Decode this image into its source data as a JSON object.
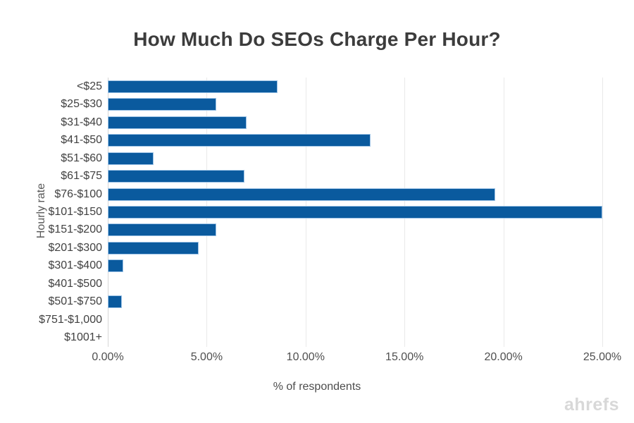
{
  "chart_data": {
    "type": "bar",
    "orientation": "horizontal",
    "title": "How Much Do SEOs Charge Per Hour?",
    "xlabel": "% of respondents",
    "ylabel": "Hourly rate",
    "categories": [
      "<$25",
      "$25-$30",
      "$31-$40",
      "$41-$50",
      "$51-$60",
      "$61-$75",
      "$76-$100",
      "$101-$150",
      "$151-$200",
      "$201-$300",
      "$301-$400",
      "$401-$500",
      "$501-$750",
      "$751-$1,000",
      "$1001+"
    ],
    "values": [
      8.6,
      5.5,
      7.0,
      13.3,
      2.3,
      6.9,
      19.6,
      25.0,
      5.5,
      4.6,
      0.8,
      0,
      0.7,
      0,
      0
    ],
    "xlim": [
      0,
      25
    ],
    "xtick_step": 5,
    "xtick_labels": [
      "0.00%",
      "5.00%",
      "10.00%",
      "15.00%",
      "20.00%",
      "25.00%"
    ],
    "grid": true,
    "legend": "none",
    "colors": {
      "bar_fill": "#0a5a9e",
      "bar_border": "#9dc3e6",
      "gridline": "#e9e9e9",
      "axis_line": "#d6d6d6",
      "title_text": "#3c3c3c",
      "tick_text": "#4f4f4f",
      "watermark_text": "#d8d8d8"
    }
  },
  "watermark": "ahrefs"
}
